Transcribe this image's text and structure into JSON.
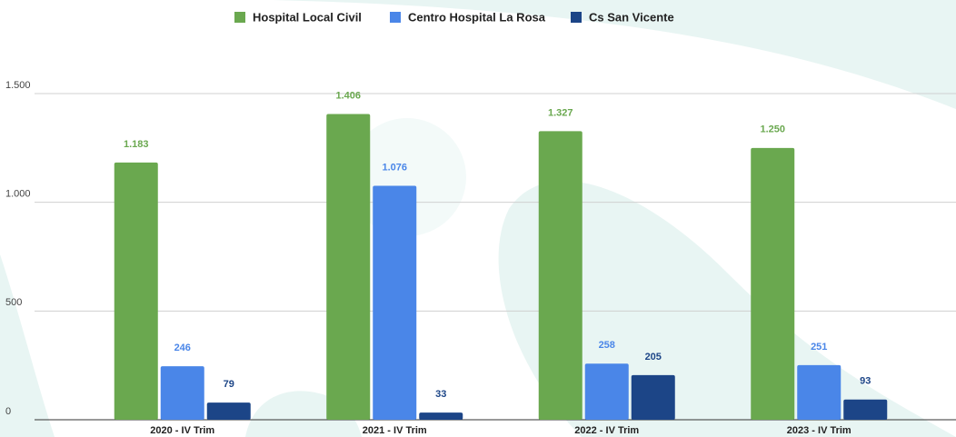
{
  "chart_data": {
    "type": "bar",
    "categories": [
      "2020 - IV Trim",
      "2021 - IV Trim",
      "2022 - IV Trim",
      "2023 - IV Trim"
    ],
    "series": [
      {
        "name": "Hospital Local Civil",
        "color": "#6aa84f",
        "values": [
          1183,
          1406,
          1327,
          1250
        ],
        "value_labels": [
          "1.183",
          "1.406",
          "1.327",
          "1.250"
        ]
      },
      {
        "name": "Centro Hospital La Rosa",
        "color": "#4a86e8",
        "values": [
          246,
          1076,
          258,
          251
        ],
        "value_labels": [
          "246",
          "1.076",
          "258",
          "251"
        ]
      },
      {
        "name": "Cs San Vicente",
        "color": "#1c4587",
        "values": [
          79,
          33,
          205,
          93
        ]
      }
    ],
    "ylim": [
      0,
      1500
    ],
    "yticks": [
      0,
      500,
      {
        "value": 1000,
        "label": "1.000"
      },
      {
        "value": 1500,
        "label": "1.500"
      }
    ],
    "grid": true,
    "legend": "top"
  }
}
